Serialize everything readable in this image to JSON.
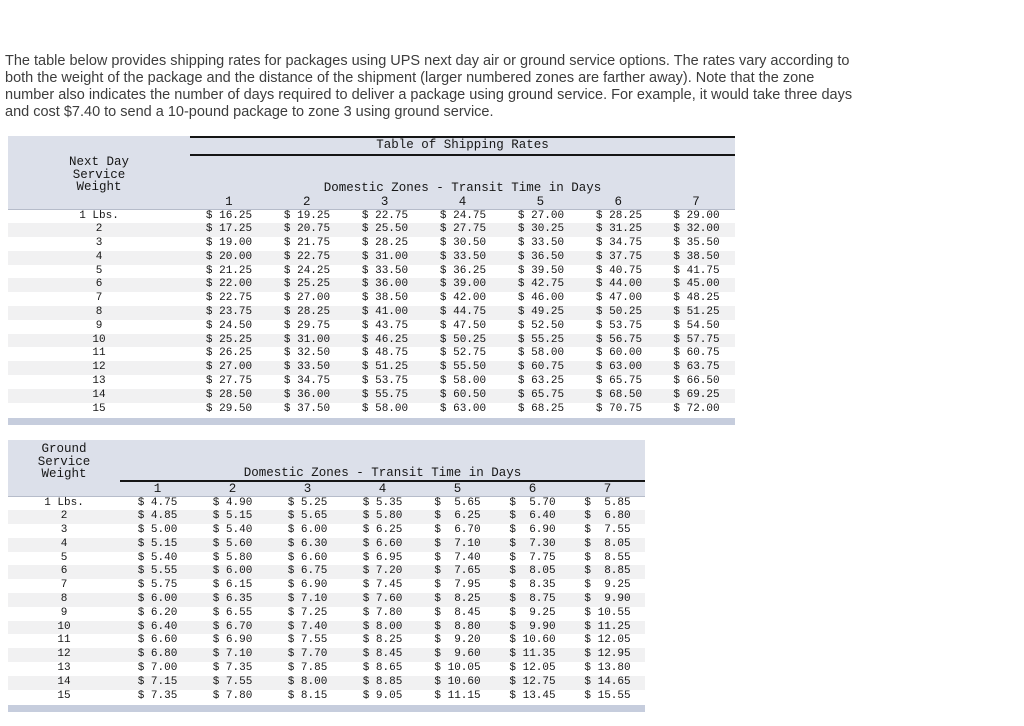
{
  "intro": {
    "lines": [
      "The table below provides shipping rates for packages using UPS next day air or ground service options. The rates vary according to",
      "both the weight of the package and the distance of the shipment (larger numbered zones are farther away). Note that the zone",
      "number also indicates the number of days required to deliver a package using ground service. For example, it would take three days",
      "and cost $7.40 to send a 10-pound package to zone 3 using ground service."
    ]
  },
  "colors": {
    "header_band": "#dce0ea",
    "footer_band": "#c6cddd",
    "row_stripe": "#f1f1f2",
    "rule": "#151515"
  },
  "chart_data": [
    {
      "type": "table",
      "title": "Table of Shipping Rates",
      "weight_header": [
        "Next Day",
        "Service",
        "Weight"
      ],
      "zones_header": "Domestic Zones - Transit Time in Days",
      "zone_labels": [
        "1",
        "2",
        "3",
        "4",
        "5",
        "6",
        "7"
      ],
      "currency_prefix": "$",
      "rows": [
        {
          "weight": "1 Lbs.",
          "rates": [
            "16.25",
            "19.25",
            "22.75",
            "24.75",
            "27.00",
            "28.25",
            "29.00"
          ]
        },
        {
          "weight": "2",
          "rates": [
            "17.25",
            "20.75",
            "25.50",
            "27.75",
            "30.25",
            "31.25",
            "32.00"
          ]
        },
        {
          "weight": "3",
          "rates": [
            "19.00",
            "21.75",
            "28.25",
            "30.50",
            "33.50",
            "34.75",
            "35.50"
          ]
        },
        {
          "weight": "4",
          "rates": [
            "20.00",
            "22.75",
            "31.00",
            "33.50",
            "36.50",
            "37.75",
            "38.50"
          ]
        },
        {
          "weight": "5",
          "rates": [
            "21.25",
            "24.25",
            "33.50",
            "36.25",
            "39.50",
            "40.75",
            "41.75"
          ]
        },
        {
          "weight": "6",
          "rates": [
            "22.00",
            "25.25",
            "36.00",
            "39.00",
            "42.75",
            "44.00",
            "45.00"
          ]
        },
        {
          "weight": "7",
          "rates": [
            "22.75",
            "27.00",
            "38.50",
            "42.00",
            "46.00",
            "47.00",
            "48.25"
          ]
        },
        {
          "weight": "8",
          "rates": [
            "23.75",
            "28.25",
            "41.00",
            "44.75",
            "49.25",
            "50.25",
            "51.25"
          ]
        },
        {
          "weight": "9",
          "rates": [
            "24.50",
            "29.75",
            "43.75",
            "47.50",
            "52.50",
            "53.75",
            "54.50"
          ]
        },
        {
          "weight": "10",
          "rates": [
            "25.25",
            "31.00",
            "46.25",
            "50.25",
            "55.25",
            "56.75",
            "57.75"
          ]
        },
        {
          "weight": "11",
          "rates": [
            "26.25",
            "32.50",
            "48.75",
            "52.75",
            "58.00",
            "60.00",
            "60.75"
          ]
        },
        {
          "weight": "12",
          "rates": [
            "27.00",
            "33.50",
            "51.25",
            "55.50",
            "60.75",
            "63.00",
            "63.75"
          ]
        },
        {
          "weight": "13",
          "rates": [
            "27.75",
            "34.75",
            "53.75",
            "58.00",
            "63.25",
            "65.75",
            "66.50"
          ]
        },
        {
          "weight": "14",
          "rates": [
            "28.50",
            "36.00",
            "55.75",
            "60.50",
            "65.75",
            "68.50",
            "69.25"
          ]
        },
        {
          "weight": "15",
          "rates": [
            "29.50",
            "37.50",
            "58.00",
            "63.00",
            "68.25",
            "70.75",
            "72.00"
          ]
        }
      ]
    },
    {
      "type": "table",
      "title": "",
      "weight_header": [
        "Ground",
        "Service",
        "Weight"
      ],
      "zones_header": "Domestic Zones - Transit Time in Days",
      "zone_labels": [
        "1",
        "2",
        "3",
        "4",
        "5",
        "6",
        "7"
      ],
      "currency_prefix": "$",
      "rows": [
        {
          "weight": "1 Lbs.",
          "rates": [
            "4.75",
            "4.90",
            "5.25",
            "5.35",
            "5.65",
            "5.70",
            "5.85"
          ]
        },
        {
          "weight": "2",
          "rates": [
            "4.85",
            "5.15",
            "5.65",
            "5.80",
            "6.25",
            "6.40",
            "6.80"
          ]
        },
        {
          "weight": "3",
          "rates": [
            "5.00",
            "5.40",
            "6.00",
            "6.25",
            "6.70",
            "6.90",
            "7.55"
          ]
        },
        {
          "weight": "4",
          "rates": [
            "5.15",
            "5.60",
            "6.30",
            "6.60",
            "7.10",
            "7.30",
            "8.05"
          ]
        },
        {
          "weight": "5",
          "rates": [
            "5.40",
            "5.80",
            "6.60",
            "6.95",
            "7.40",
            "7.75",
            "8.55"
          ]
        },
        {
          "weight": "6",
          "rates": [
            "5.55",
            "6.00",
            "6.75",
            "7.20",
            "7.65",
            "8.05",
            "8.85"
          ]
        },
        {
          "weight": "7",
          "rates": [
            "5.75",
            "6.15",
            "6.90",
            "7.45",
            "7.95",
            "8.35",
            "9.25"
          ]
        },
        {
          "weight": "8",
          "rates": [
            "6.00",
            "6.35",
            "7.10",
            "7.60",
            "8.25",
            "8.75",
            "9.90"
          ]
        },
        {
          "weight": "9",
          "rates": [
            "6.20",
            "6.55",
            "7.25",
            "7.80",
            "8.45",
            "9.25",
            "10.55"
          ]
        },
        {
          "weight": "10",
          "rates": [
            "6.40",
            "6.70",
            "7.40",
            "8.00",
            "8.80",
            "9.90",
            "11.25"
          ]
        },
        {
          "weight": "11",
          "rates": [
            "6.60",
            "6.90",
            "7.55",
            "8.25",
            "9.20",
            "10.60",
            "12.05"
          ]
        },
        {
          "weight": "12",
          "rates": [
            "6.80",
            "7.10",
            "7.70",
            "8.45",
            "9.60",
            "11.35",
            "12.95"
          ]
        },
        {
          "weight": "13",
          "rates": [
            "7.00",
            "7.35",
            "7.85",
            "8.65",
            "10.05",
            "12.05",
            "13.80"
          ]
        },
        {
          "weight": "14",
          "rates": [
            "7.15",
            "7.55",
            "8.00",
            "8.85",
            "10.60",
            "12.75",
            "14.65"
          ]
        },
        {
          "weight": "15",
          "rates": [
            "7.35",
            "7.80",
            "8.15",
            "9.05",
            "11.15",
            "13.45",
            "15.55"
          ]
        }
      ]
    }
  ]
}
